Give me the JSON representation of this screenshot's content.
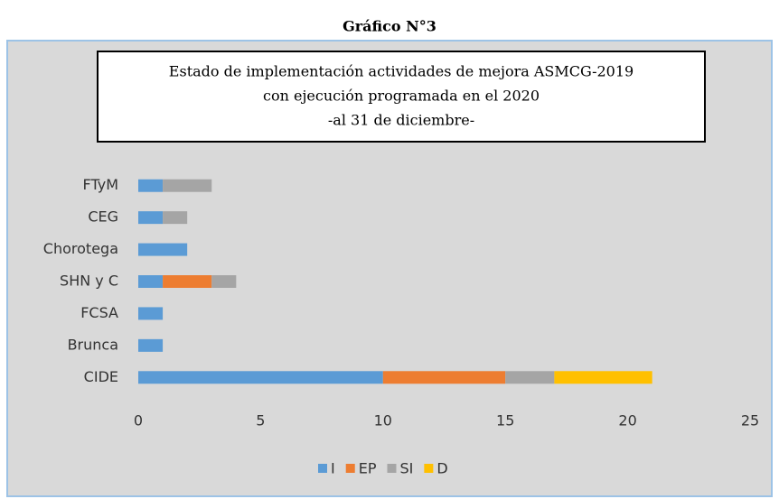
{
  "heading": "Gráfico N°3",
  "chart_data": {
    "type": "stacked-bar-horizontal",
    "title": [
      "Estado de implementación actividades de mejora ASMCG-2019",
      "con ejecución programada en el 2020",
      "-al 31 de diciembre-"
    ],
    "categories": [
      "FTyM",
      "CEG",
      "Chorotega",
      "SHN y C",
      "FCSA",
      "Brunca",
      "CIDE"
    ],
    "series": [
      {
        "name": "I",
        "color": "#5b9bd5",
        "values": [
          1,
          1,
          2,
          1,
          1,
          1,
          10
        ]
      },
      {
        "name": "EP",
        "color": "#ed7d31",
        "values": [
          0,
          0,
          0,
          2,
          0,
          0,
          5
        ]
      },
      {
        "name": "SI",
        "color": "#a5a5a5",
        "values": [
          2,
          1,
          0,
          1,
          0,
          0,
          2
        ]
      },
      {
        "name": "D",
        "color": "#ffc000",
        "values": [
          0,
          0,
          0,
          0,
          0,
          0,
          4
        ]
      }
    ],
    "xlim": [
      0,
      25
    ],
    "xticks": [
      0,
      5,
      10,
      15,
      20,
      25
    ],
    "grid": false,
    "legend": "bottom"
  }
}
